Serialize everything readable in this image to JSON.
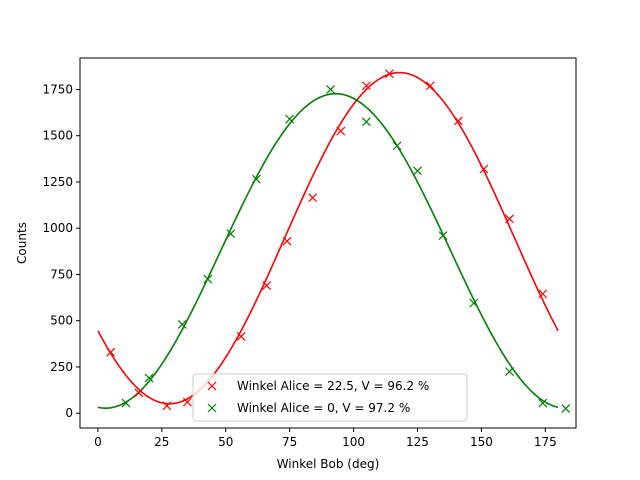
{
  "chart_data": {
    "type": "scatter",
    "title": "",
    "xlabel": "Winkel Bob (deg)",
    "ylabel": "Counts",
    "xlim": [
      -7,
      187
    ],
    "ylim": [
      -80,
      1920
    ],
    "x_ticks": [
      0,
      25,
      50,
      75,
      100,
      125,
      150,
      175
    ],
    "y_ticks": [
      0,
      250,
      500,
      750,
      1000,
      1250,
      1500,
      1750
    ],
    "grid": false,
    "legend_position": "lower-center",
    "series": [
      {
        "name": "Winkel Alice = 22.5, V = 96.2 %",
        "color": "#ff0000",
        "marker": "x",
        "points": [
          [
            5,
            330
          ],
          [
            16,
            110
          ],
          [
            27,
            40
          ],
          [
            35,
            60
          ],
          [
            56,
            415
          ],
          [
            66,
            690
          ],
          [
            74,
            930
          ],
          [
            84,
            1165
          ],
          [
            95,
            1525
          ],
          [
            105,
            1770
          ],
          [
            114,
            1835
          ],
          [
            130,
            1770
          ],
          [
            141,
            1580
          ],
          [
            151,
            1320
          ],
          [
            161,
            1050
          ],
          [
            174,
            645
          ]
        ],
        "fit": {
          "amplitude": 895,
          "offset": 946,
          "peak_deg": 118,
          "period_deg": 180,
          "x_range": [
            0,
            180
          ]
        }
      },
      {
        "name": "Winkel Alice = 0, V = 97.2 %",
        "color": "#008000",
        "marker": "x",
        "points": [
          [
            11,
            55
          ],
          [
            20,
            190
          ],
          [
            33,
            480
          ],
          [
            43,
            725
          ],
          [
            52,
            970
          ],
          [
            62,
            1265
          ],
          [
            75,
            1590
          ],
          [
            91,
            1750
          ],
          [
            105,
            1575
          ],
          [
            117,
            1445
          ],
          [
            125,
            1310
          ],
          [
            135,
            960
          ],
          [
            147,
            595
          ],
          [
            161,
            225
          ],
          [
            174,
            55
          ],
          [
            183,
            25
          ]
        ],
        "fit": {
          "amplitude": 850,
          "offset": 877,
          "peak_deg": 93,
          "period_deg": 180,
          "x_range": [
            0,
            180
          ]
        }
      }
    ]
  }
}
